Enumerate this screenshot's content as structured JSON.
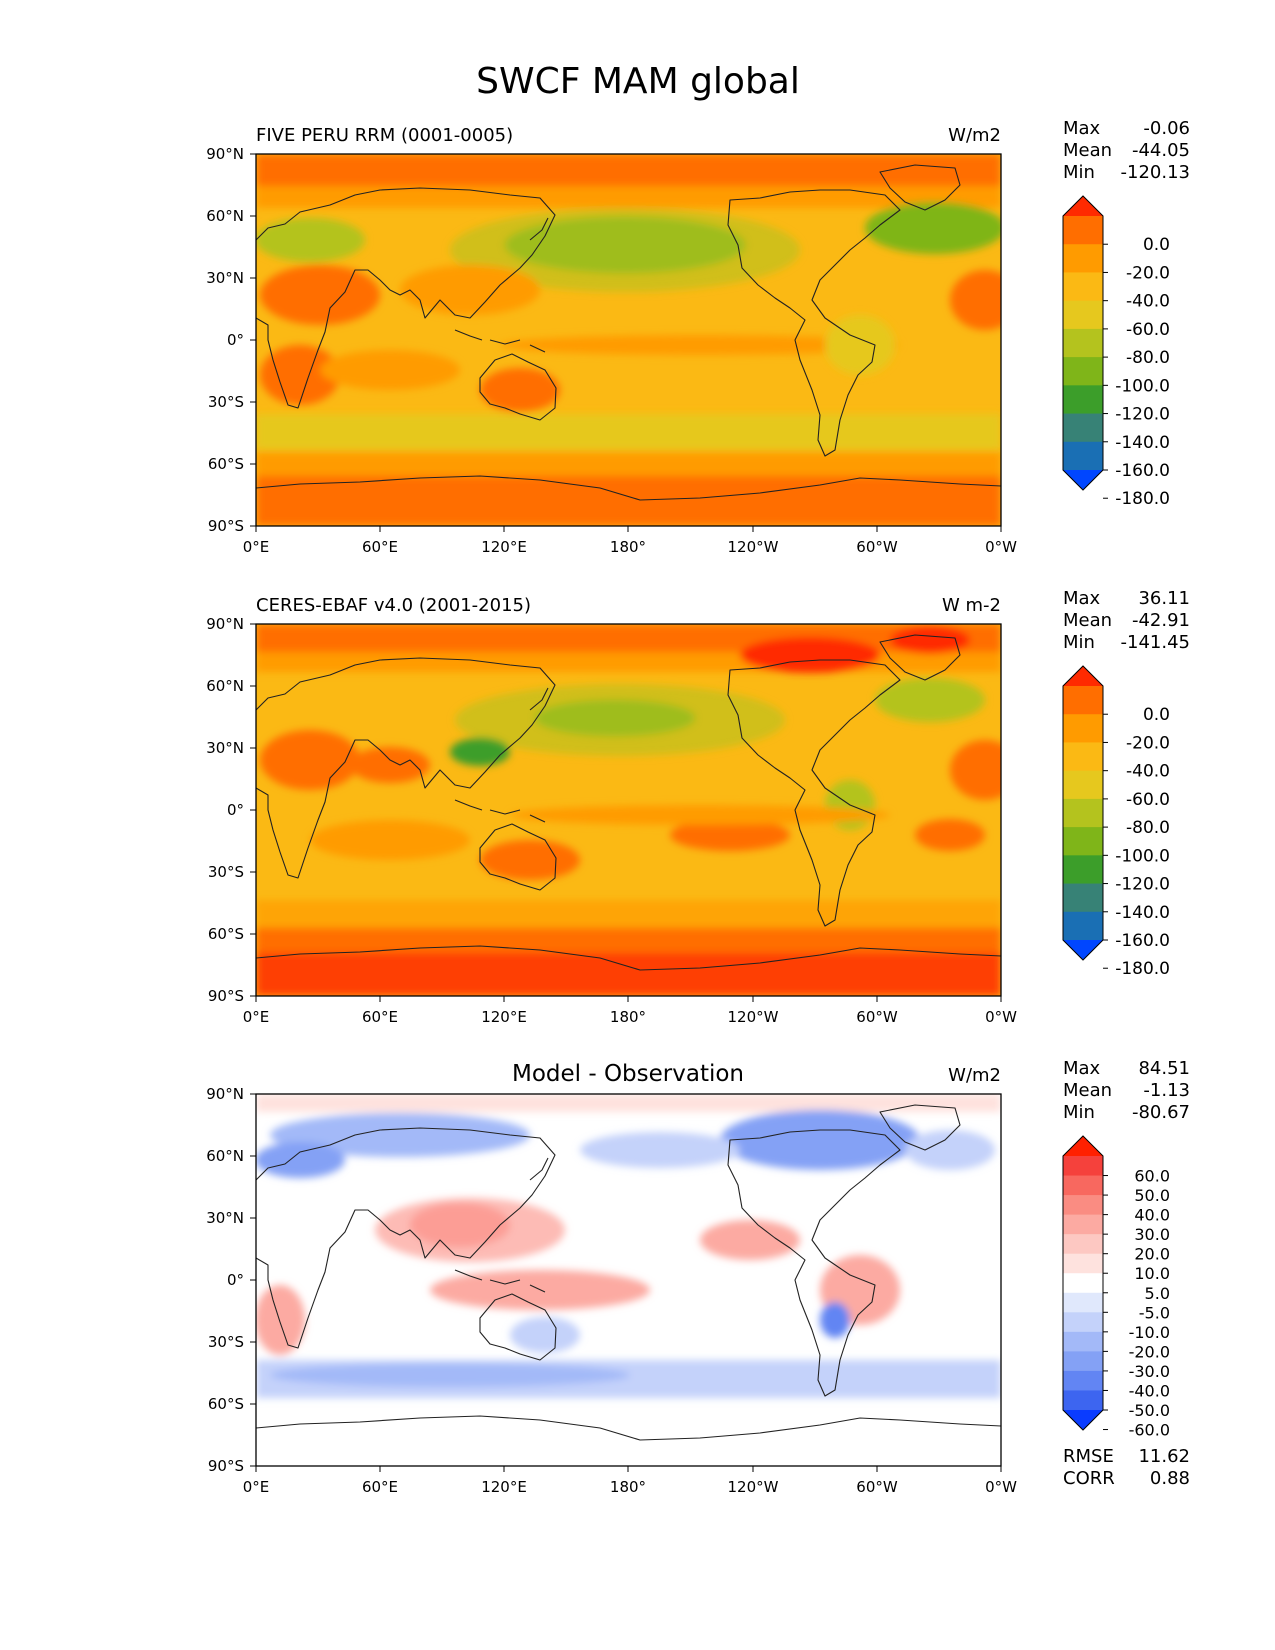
{
  "chart_data": {
    "type": "heatmap",
    "title": "SWCF MAM global",
    "x_ticks": [
      "0°E",
      "60°E",
      "120°E",
      "180°",
      "120°W",
      "60°W",
      "0°W"
    ],
    "y_ticks": [
      "90°N",
      "60°N",
      "30°N",
      "0°",
      "30°S",
      "60°S",
      "90°S"
    ],
    "x_range": [
      0,
      360
    ],
    "y_range": [
      -90,
      90
    ],
    "panels": [
      {
        "title": "FIVE PERU RRM (0001-0005)",
        "units": "W/m2",
        "stats": {
          "max_label": "Max",
          "max": "-0.06",
          "mean_label": "Mean",
          "mean": "-44.05",
          "min_label": "Min",
          "min": "-120.13"
        },
        "colorbar": {
          "levels": [
            "0.0",
            "-20.0",
            "-40.0",
            "-60.0",
            "-80.0",
            "-100.0",
            "-120.0",
            "-140.0",
            "-160.0",
            "-180.0"
          ],
          "colors": [
            "#ff2a00",
            "#ff6e00",
            "#ff9b00",
            "#fbb914",
            "#e6c81e",
            "#b4c31e",
            "#7fb519",
            "#3c9e2a",
            "#378276",
            "#1a6fb4",
            "#0046ff"
          ]
        }
      },
      {
        "title": "CERES-EBAF v4.0 (2001-2015)",
        "units": "W m-2",
        "stats": {
          "max_label": "Max",
          "max": "36.11",
          "mean_label": "Mean",
          "mean": "-42.91",
          "min_label": "Min",
          "min": "-141.45"
        },
        "colorbar": {
          "levels": [
            "0.0",
            "-20.0",
            "-40.0",
            "-60.0",
            "-80.0",
            "-100.0",
            "-120.0",
            "-140.0",
            "-160.0",
            "-180.0"
          ],
          "colors": [
            "#ff2a00",
            "#ff6e00",
            "#ff9b00",
            "#fbb914",
            "#e6c81e",
            "#b4c31e",
            "#7fb519",
            "#3c9e2a",
            "#378276",
            "#1a6fb4",
            "#0046ff"
          ]
        }
      },
      {
        "title": "Model - Observation",
        "units": "W/m2",
        "stats": {
          "max_label": "Max",
          "max": "84.51",
          "mean_label": "Mean",
          "mean": "-1.13",
          "min_label": "Min",
          "min": "-80.67"
        },
        "extra": {
          "rmse_label": "RMSE",
          "rmse": "11.62",
          "corr_label": "CORR",
          "corr": "0.88"
        },
        "colorbar": {
          "levels": [
            "60.0",
            "50.0",
            "40.0",
            "30.0",
            "20.0",
            "10.0",
            "5.0",
            "-5.0",
            "-10.0",
            "-20.0",
            "-30.0",
            "-40.0",
            "-50.0",
            "-60.0"
          ],
          "colors": [
            "#ff2000",
            "#f5413c",
            "#f8685f",
            "#fa8c82",
            "#fcaaa2",
            "#fdc8c2",
            "#fee2de",
            "#ffffff",
            "#e0e8fc",
            "#c4d2fa",
            "#a3b9f8",
            "#84a1f5",
            "#6285f3",
            "#3d65f0",
            "#0a3cff"
          ]
        }
      }
    ]
  }
}
